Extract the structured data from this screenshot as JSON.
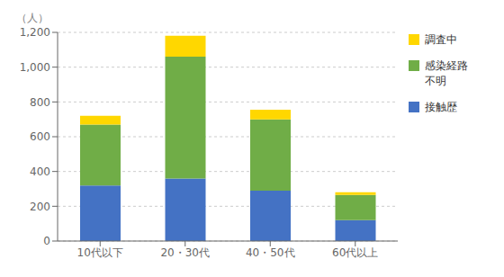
{
  "chart_data": {
    "type": "bar",
    "stacked": true,
    "ylabel": "（人）",
    "categories": [
      "10代以下",
      "20・30代",
      "40・50代",
      "60代以上"
    ],
    "series": [
      {
        "name": "接触歴",
        "color": "#4472C4",
        "values": [
          320,
          360,
          290,
          120
        ]
      },
      {
        "name": "感染経路\n不明",
        "color": "#70AD47",
        "values": [
          350,
          700,
          410,
          145
        ]
      },
      {
        "name": "調査中",
        "color": "#FFD700",
        "values": [
          50,
          120,
          55,
          15
        ]
      }
    ],
    "ylim": [
      0,
      1200
    ],
    "yticks": [
      0,
      200,
      400,
      600,
      800,
      {
        "value": 1000,
        "label": "1,000"
      },
      {
        "value": 1200,
        "label": "1,200"
      }
    ],
    "grid": true,
    "legend": "right"
  }
}
